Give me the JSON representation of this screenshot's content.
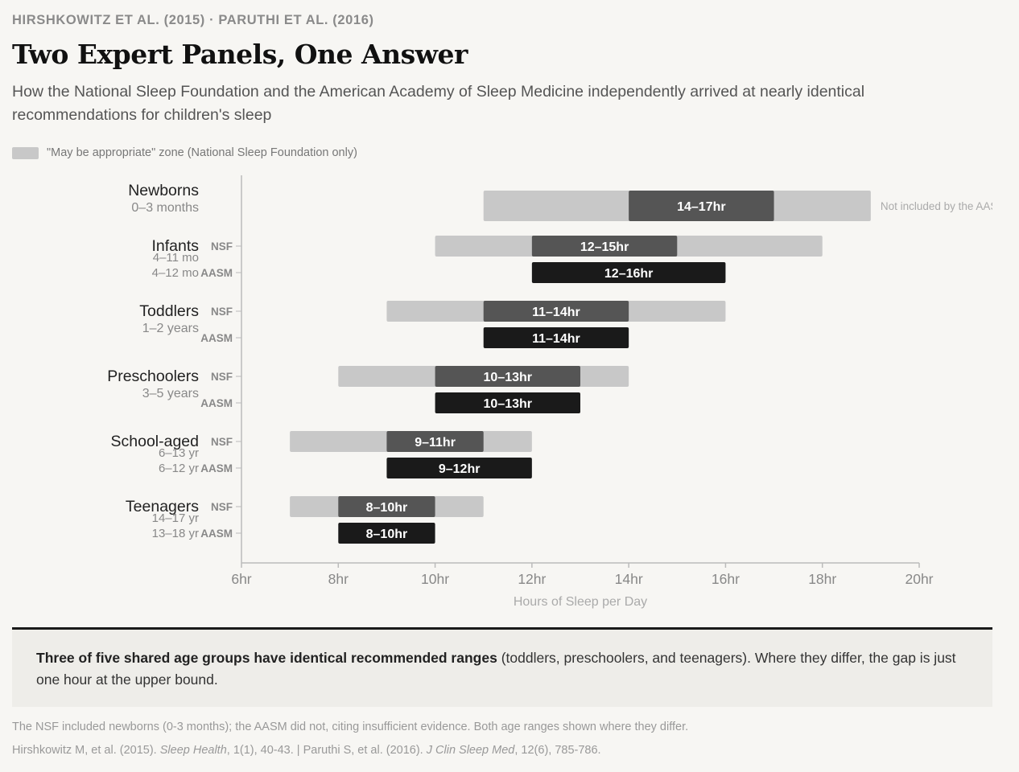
{
  "header": {
    "kicker": "HIRSHKOWITZ ET AL. (2015) · PARUTHI ET AL. (2016)",
    "title": "Two Expert Panels, One Answer",
    "subtitle": "How the National Sleep Foundation and the American Academy of Sleep Medicine independently arrived at nearly identical recommendations for children's sleep"
  },
  "legend": {
    "label": "\"May be appropriate\" zone (National Sleep Foundation only)"
  },
  "colors": {
    "appropriate_zone": "#c8c8c8",
    "nsf_recommended": "#555555",
    "aasm_recommended": "#1a1a1a",
    "axis": "#bbbbbb",
    "background": "#f7f6f3"
  },
  "chart_data": {
    "type": "range-bar",
    "xlabel": "Hours of Sleep per Day",
    "xlim": [
      6,
      20
    ],
    "x_ticks": [
      "6hr",
      "8hr",
      "10hr",
      "12hr",
      "14hr",
      "16hr",
      "18hr",
      "20hr"
    ],
    "x_tick_values": [
      6,
      8,
      10,
      12,
      14,
      16,
      18,
      20
    ],
    "groups": [
      {
        "name": "Newborns",
        "age": "0–3 months",
        "bars": [
          {
            "panel": "",
            "range": [
              14,
              17
            ],
            "label": "14–17hr",
            "appropriate": [
              11,
              19
            ]
          }
        ],
        "annotation": "Not included by the AASM"
      },
      {
        "name": "Infants",
        "bars": [
          {
            "panel": "NSF",
            "age": "4–11 mo",
            "range": [
              12,
              15
            ],
            "label": "12–15hr",
            "appropriate": [
              10,
              18
            ]
          },
          {
            "panel": "AASM",
            "age": "4–12 mo",
            "range": [
              12,
              16
            ],
            "label": "12–16hr"
          }
        ]
      },
      {
        "name": "Toddlers",
        "age": "1–2 years",
        "bars": [
          {
            "panel": "NSF",
            "range": [
              11,
              14
            ],
            "label": "11–14hr",
            "appropriate": [
              9,
              16
            ]
          },
          {
            "panel": "AASM",
            "range": [
              11,
              14
            ],
            "label": "11–14hr"
          }
        ]
      },
      {
        "name": "Preschoolers",
        "age": "3–5 years",
        "bars": [
          {
            "panel": "NSF",
            "range": [
              10,
              13
            ],
            "label": "10–13hr",
            "appropriate": [
              8,
              14
            ]
          },
          {
            "panel": "AASM",
            "range": [
              10,
              13
            ],
            "label": "10–13hr"
          }
        ]
      },
      {
        "name": "School-aged",
        "bars": [
          {
            "panel": "NSF",
            "age": "6–13 yr",
            "range": [
              9,
              11
            ],
            "label": "9–11hr",
            "appropriate": [
              7,
              12
            ]
          },
          {
            "panel": "AASM",
            "age": "6–12 yr",
            "range": [
              9,
              12
            ],
            "label": "9–12hr"
          }
        ]
      },
      {
        "name": "Teenagers",
        "bars": [
          {
            "panel": "NSF",
            "age": "14–17 yr",
            "range": [
              8,
              10
            ],
            "label": "8–10hr",
            "appropriate": [
              7,
              11
            ]
          },
          {
            "panel": "AASM",
            "age": "13–18 yr",
            "range": [
              8,
              10
            ],
            "label": "8–10hr"
          }
        ]
      }
    ]
  },
  "callout": {
    "bold": "Three of five shared age groups have identical recommended ranges",
    "rest": " (toddlers, preschoolers, and teenagers). Where they differ, the gap is just one hour at the upper bound."
  },
  "footer": {
    "note": "The NSF included newborns (0-3 months); the AASM did not, citing insufficient evidence. Both age ranges shown where they differ.",
    "source_a": "Hirshkowitz M, et al. (2015). ",
    "source_journal_a": "Sleep Health",
    "source_b": ", 1(1), 40-43. | Paruthi S, et al. (2016). ",
    "source_journal_b": "J Clin Sleep Med",
    "source_c": ", 12(6), 785-786."
  }
}
